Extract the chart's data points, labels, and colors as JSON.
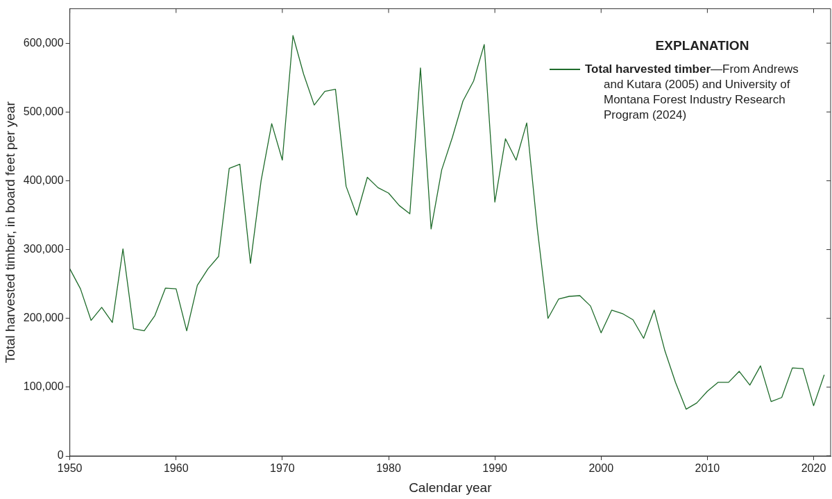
{
  "chart_data": {
    "type": "line",
    "xlabel": "Calendar year",
    "ylabel": "Total harvested timber, in board feet per year",
    "legend_title": "EXPLANATION",
    "legend": "top right",
    "grid": false,
    "marker": "none",
    "line_style": "solid",
    "annotations": [
      "—From Andrews and Kutara (2005) and University of Montana Forest Industry Research Program (2024)"
    ],
    "x": [
      1950,
      1951,
      1952,
      1953,
      1954,
      1955,
      1956,
      1957,
      1958,
      1959,
      1960,
      1961,
      1962,
      1963,
      1964,
      1965,
      1966,
      1967,
      1968,
      1969,
      1970,
      1971,
      1972,
      1973,
      1974,
      1975,
      1976,
      1977,
      1978,
      1979,
      1980,
      1981,
      1982,
      1983,
      1984,
      1985,
      1986,
      1987,
      1988,
      1989,
      1990,
      1991,
      1992,
      1993,
      1994,
      1995,
      1996,
      1997,
      1998,
      1999,
      2000,
      2001,
      2002,
      2003,
      2004,
      2005,
      2006,
      2007,
      2008,
      2009,
      2010,
      2011,
      2012,
      2013,
      2014,
      2015,
      2016,
      2017,
      2018,
      2019,
      2020,
      2021
    ],
    "series": [
      {
        "name": "Total harvested timber",
        "color": "#1e6b2a",
        "values": [
          272000,
          243000,
          197000,
          216000,
          194000,
          301000,
          185000,
          182000,
          204000,
          244000,
          243000,
          182000,
          248000,
          272000,
          290000,
          418000,
          424000,
          280000,
          400000,
          483000,
          430000,
          611000,
          555000,
          510000,
          530000,
          533000,
          392000,
          350000,
          405000,
          390000,
          382000,
          364000,
          352000,
          564000,
          330000,
          416000,
          463000,
          516000,
          545000,
          598000,
          369000,
          461000,
          430000,
          484000,
          330000,
          200000,
          228000,
          232000,
          233000,
          218000,
          179000,
          212000,
          207000,
          198000,
          171000,
          212000,
          153000,
          107000,
          68000,
          77000,
          94000,
          107000,
          107000,
          123000,
          103000,
          131000,
          79000,
          85000,
          128000,
          127000,
          73000,
          118000
        ]
      }
    ],
    "xlim": [
      1950,
      2021.6
    ],
    "xticks": [
      1950,
      1960,
      1970,
      1980,
      1990,
      2000,
      2010,
      2020
    ],
    "ylim": [
      0,
      650000
    ],
    "yticks": [
      0,
      {
        "value": 100000,
        "label": "100,000"
      },
      {
        "value": 200000,
        "label": "200,000"
      },
      {
        "value": 300000,
        "label": "300,000"
      },
      {
        "value": 400000,
        "label": "400,000"
      },
      {
        "value": 500000,
        "label": "500,000"
      },
      {
        "value": 600000,
        "label": "600,000"
      }
    ]
  }
}
